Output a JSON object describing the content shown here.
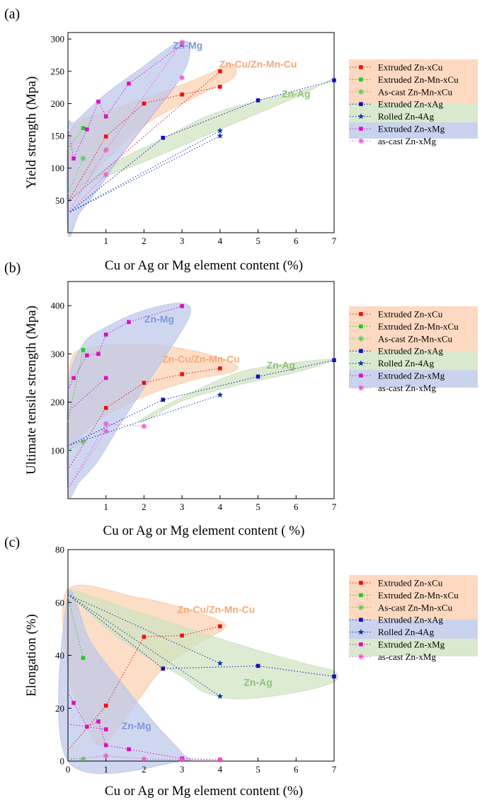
{
  "colors": {
    "Extruded Zn-xCu": "#ee1111",
    "Extruded Zn-Mn-xCu": "#22cc22",
    "As-cast Zn-Mn-xCu": "#55cc55",
    "Extruded Zn-xAg": "#1111bb",
    "Rolled Zn-4Ag": "#1133aa",
    "Extruded Zn-xMg": "#dd11bb",
    "as-cast Zn-xMg": "#ee55cc",
    "region_cu": "#fbd0b0",
    "region_ag": "#cfe3c0",
    "region_mg": "#bcc8ea",
    "region_cu_text": "#f7a878",
    "region_ag_text": "#8fc27a",
    "region_mg_text": "#7f98d8"
  },
  "chart_data": [
    {
      "type": "scatter",
      "panel_label": "(a)",
      "xlabel": "Cu or Ag or Mg element content (%)",
      "ylabel": "Yield strength (Mpa)",
      "xlim": [
        0,
        7
      ],
      "ylim": [
        0,
        310
      ],
      "x_ticks": [
        1,
        2,
        3,
        4,
        5,
        6,
        7
      ],
      "y_ticks": [
        50,
        100,
        150,
        200,
        250,
        300
      ],
      "legend": [
        "Extruded Zn-xCu",
        "Extruded Zn-Mn-xCu",
        "As-cast Zn-Mn-xCu",
        "Extruded Zn-xAg",
        "Rolled Zn-4Ag",
        "Extruded Zn-xMg",
        "as-cast Zn-xMg"
      ],
      "region_labels": [
        {
          "text": "Zn-Mg",
          "group": "mg",
          "x": 3.15,
          "y": 285
        },
        {
          "text": "Zn-Cu/Zn-Mn-Cu",
          "group": "cu",
          "x": 5.0,
          "y": 256
        },
        {
          "text": "Zn-Ag",
          "group": "ag",
          "x": 6.0,
          "y": 210
        }
      ],
      "regions": [
        {
          "group": "ag",
          "points": [
            [
              0.4,
              75
            ],
            [
              2,
              110
            ],
            [
              4,
              160
            ],
            [
              6,
              210
            ],
            [
              7,
              240
            ],
            [
              6.5,
              226
            ],
            [
              4,
              188
            ],
            [
              2.5,
              146
            ],
            [
              1.2,
              108
            ],
            [
              0.6,
              82
            ]
          ]
        },
        {
          "group": "cu",
          "points": [
            [
              0,
              52
            ],
            [
              0.05,
              150
            ],
            [
              0.4,
              175
            ],
            [
              1.2,
              192
            ],
            [
              2.5,
              218
            ],
            [
              3.7,
              246
            ],
            [
              4.3,
              262
            ],
            [
              4.35,
              240
            ],
            [
              3.4,
              212
            ],
            [
              2.1,
              170
            ],
            [
              1.1,
              118
            ],
            [
              0.4,
              72
            ],
            [
              0.05,
              48
            ]
          ]
        },
        {
          "group": "mg",
          "points": [
            [
              0,
              0
            ],
            [
              0,
              160
            ],
            [
              0.2,
              172
            ],
            [
              1,
              215
            ],
            [
              2,
              258
            ],
            [
              2.8,
              292
            ],
            [
              3.2,
              292
            ],
            [
              3.05,
              250
            ],
            [
              2.3,
              188
            ],
            [
              1.5,
              128
            ],
            [
              0.8,
              68
            ],
            [
              0.3,
              30
            ]
          ]
        }
      ],
      "series": [
        {
          "name": "Extruded Zn-xCu",
          "marker": "square",
          "x": [
            0,
            1,
            2,
            3,
            4
          ],
          "y": [
            48,
            149,
            200,
            214,
            226
          ]
        },
        {
          "name": "Extruded Zn-xCu",
          "marker": "square",
          "x": [
            0,
            4
          ],
          "y": [
            48,
            250
          ]
        },
        {
          "name": "Extruded Zn-Mn-xCu",
          "marker": "square",
          "x": [
            0,
            0.4
          ],
          "y": [
            130,
            162
          ]
        },
        {
          "name": "As-cast Zn-Mn-xCu",
          "marker": "asterisk",
          "x": [
            0,
            0.4
          ],
          "y": [
            60,
            115
          ]
        },
        {
          "name": "Extruded Zn-xAg",
          "marker": "square",
          "x": [
            0,
            2.5,
            5,
            7
          ],
          "y": [
            30,
            147,
            205,
            236
          ]
        },
        {
          "name": "Rolled Zn-4Ag",
          "marker": "star",
          "x": [
            0,
            4
          ],
          "y": [
            30,
            150
          ]
        },
        {
          "name": "Rolled Zn-4Ag",
          "marker": "star",
          "x": [
            0,
            4
          ],
          "y": [
            30,
            158
          ]
        },
        {
          "name": "Extruded Zn-xMg",
          "marker": "square",
          "x": [
            0,
            0.15,
            0.5,
            0.8,
            1,
            1.6,
            3
          ],
          "y": [
            160,
            115,
            160,
            203,
            180,
            231,
            291
          ]
        },
        {
          "name": "as-cast Zn-xMg",
          "marker": "asterisk",
          "x": [
            0,
            1,
            3
          ],
          "y": [
            30,
            128,
            295
          ]
        },
        {
          "name": "as-cast Zn-xMg",
          "marker": "asterisk",
          "x": [
            0,
            1,
            3
          ],
          "y": [
            30,
            90,
            240
          ]
        }
      ]
    },
    {
      "type": "scatter",
      "panel_label": "(b)",
      "xlabel": "Cu or Ag or Mg element content ( %)",
      "ylabel": "Ultimate tensile strength (Mpa)",
      "xlim": [
        0,
        7
      ],
      "ylim": [
        0,
        450
      ],
      "x_ticks": [
        1,
        2,
        3,
        4,
        5,
        6,
        7
      ],
      "y_ticks": [
        100,
        200,
        300,
        400
      ],
      "legend": [
        "Extruded Zn-xCu",
        "Extruded Zn-Mn-xCu",
        "As-cast Zn-Mn-xCu",
        "Extruded Zn-xAg",
        "Rolled Zn-4Ag",
        "Extruded Zn-xMg",
        "as-cast Zn-xMg"
      ],
      "region_labels": [
        {
          "text": "Zn-Mg",
          "group": "mg",
          "x": 2.4,
          "y": 365
        },
        {
          "text": "Zn-Cu/Zn-Mn-Cu",
          "group": "cu",
          "x": 3.5,
          "y": 282
        },
        {
          "text": "Zn-Ag",
          "group": "ag",
          "x": 5.6,
          "y": 270
        }
      ],
      "regions": [
        {
          "group": "ag",
          "points": [
            [
              2,
              168
            ],
            [
              3,
              210
            ],
            [
              4.5,
              262
            ],
            [
              6,
              282
            ],
            [
              7,
              288
            ],
            [
              6,
              262
            ],
            [
              4.5,
              236
            ],
            [
              3,
              202
            ],
            [
              2,
              160
            ]
          ]
        },
        {
          "group": "cu",
          "points": [
            [
              0,
              103
            ],
            [
              0.05,
              275
            ],
            [
              0.5,
              312
            ],
            [
              2,
              320
            ],
            [
              3.4,
              305
            ],
            [
              4.4,
              278
            ],
            [
              4.3,
              262
            ],
            [
              3.4,
              248
            ],
            [
              2.2,
              218
            ],
            [
              1,
              172
            ],
            [
              0.3,
              128
            ],
            [
              0.05,
              100
            ]
          ]
        },
        {
          "group": "mg",
          "points": [
            [
              0,
              15
            ],
            [
              0.02,
              235
            ],
            [
              0.4,
              320
            ],
            [
              1,
              355
            ],
            [
              2,
              390
            ],
            [
              3,
              405
            ],
            [
              3.2,
              380
            ],
            [
              2.6,
              300
            ],
            [
              1.5,
              170
            ],
            [
              0.8,
              80
            ],
            [
              0.3,
              35
            ]
          ]
        }
      ],
      "series": [
        {
          "name": "Extruded Zn-xCu",
          "marker": "square",
          "x": [
            0,
            1,
            2,
            3,
            4
          ],
          "y": [
            60,
            188,
            240,
            258,
            270
          ]
        },
        {
          "name": "Extruded Zn-Mn-xCu",
          "marker": "square",
          "x": [
            0,
            0.4
          ],
          "y": [
            160,
            308
          ]
        },
        {
          "name": "As-cast Zn-Mn-xCu",
          "marker": "asterisk",
          "x": [
            0,
            0.4
          ],
          "y": [
            100,
            118
          ]
        },
        {
          "name": "Extruded Zn-xAg",
          "marker": "square",
          "x": [
            0,
            2.5,
            5,
            7
          ],
          "y": [
            110,
            205,
            253,
            287
          ]
        },
        {
          "name": "Rolled Zn-4Ag",
          "marker": "star",
          "x": [
            0,
            4
          ],
          "y": [
            110,
            215
          ]
        },
        {
          "name": "Extruded Zn-xMg",
          "marker": "square",
          "x": [
            0,
            0.15,
            0.5,
            0.8,
            1,
            1.6,
            3
          ],
          "y": [
            225,
            250,
            297,
            300,
            340,
            366,
            399
          ]
        },
        {
          "name": "Extruded Zn-xMg",
          "marker": "square",
          "x": [
            0,
            1
          ],
          "y": [
            180,
            250
          ]
        },
        {
          "name": "as-cast Zn-xMg",
          "marker": "asterisk",
          "x": [
            0,
            1,
            2
          ],
          "y": [
            20,
            155,
            150
          ]
        },
        {
          "name": "as-cast Zn-xMg",
          "marker": "asterisk",
          "x": [
            0,
            1
          ],
          "y": [
            20,
            140
          ]
        }
      ]
    },
    {
      "type": "scatter",
      "panel_label": "(c)",
      "xlabel": "Cu or Ag or Mg element content (%)",
      "ylabel": "Elongation (%)",
      "xlim": [
        0,
        7
      ],
      "ylim": [
        0,
        80
      ],
      "x_ticks": [
        0,
        1,
        2,
        3,
        4,
        5,
        6,
        7
      ],
      "y_ticks": [
        0,
        20,
        40,
        60,
        80
      ],
      "legend": [
        "Extruded Zn-xCu",
        "Extruded Zn-Mn-xCu",
        "As-cast Zn-Mn-xCu",
        "Extruded Zn-xAg",
        "Rolled Zn-4Ag",
        "Extruded Zn-xMg",
        "as-cast Zn-xMg"
      ],
      "region_labels": [
        {
          "text": "Zn-Cu/Zn-Mn-Cu",
          "group": "cu",
          "x": 3.9,
          "y": 56
        },
        {
          "text": "Zn-Mg",
          "group": "mg",
          "x": 1.8,
          "y": 12
        },
        {
          "text": "Zn-Ag",
          "group": "ag",
          "x": 5.0,
          "y": 28.5
        }
      ],
      "regions": [
        {
          "group": "cu",
          "points": [
            [
              0,
              65
            ],
            [
              1.8,
              62
            ],
            [
              3,
              58
            ],
            [
              4,
              53
            ],
            [
              4.1,
              50
            ],
            [
              3.5,
              45
            ],
            [
              2.5,
              35
            ],
            [
              1.8,
              22
            ],
            [
              1.3,
              12
            ],
            [
              0.8,
              6
            ],
            [
              0.3,
              20
            ],
            [
              0,
              35
            ]
          ]
        },
        {
          "group": "ag",
          "points": [
            [
              0,
              65
            ],
            [
              1.5,
              58
            ],
            [
              3,
              51
            ],
            [
              4.5,
              44
            ],
            [
              6.2,
              37
            ],
            [
              7,
              34
            ],
            [
              7,
              30
            ],
            [
              6,
              26
            ],
            [
              4.5,
              23.5
            ],
            [
              3.6,
              26
            ],
            [
              3,
              32
            ],
            [
              2,
              40
            ],
            [
              1.2,
              48
            ],
            [
              0.4,
              58
            ]
          ]
        },
        {
          "group": "mg",
          "points": [
            [
              0,
              63
            ],
            [
              0.6,
              45
            ],
            [
              1.5,
              28
            ],
            [
              2.3,
              14
            ],
            [
              3,
              3
            ],
            [
              3,
              0
            ],
            [
              0,
              0
            ]
          ]
        }
      ],
      "series": [
        {
          "name": "Extruded Zn-xCu",
          "marker": "square",
          "x": [
            0,
            1,
            2,
            3,
            4
          ],
          "y": [
            4,
            21,
            47,
            47.5,
            51
          ]
        },
        {
          "name": "Extruded Zn-Mn-xCu",
          "marker": "square",
          "x": [
            0,
            0.4
          ],
          "y": [
            62,
            39
          ]
        },
        {
          "name": "As-cast Zn-Mn-xCu",
          "marker": "asterisk",
          "x": [
            0,
            0.4
          ],
          "y": [
            1,
            0.8
          ]
        },
        {
          "name": "Extruded Zn-xAg",
          "marker": "square",
          "x": [
            0,
            2.5,
            5,
            7
          ],
          "y": [
            63,
            35,
            36,
            32
          ]
        },
        {
          "name": "Rolled Zn-4Ag",
          "marker": "star",
          "x": [
            0,
            4
          ],
          "y": [
            63,
            37
          ]
        },
        {
          "name": "Rolled Zn-4Ag",
          "marker": "star",
          "x": [
            0,
            4
          ],
          "y": [
            63,
            24.5
          ]
        },
        {
          "name": "Extruded Zn-xMg",
          "marker": "square",
          "x": [
            0,
            0.15,
            0.5,
            0.8,
            1,
            1.6,
            3,
            4
          ],
          "y": [
            26,
            22,
            13,
            15,
            6,
            4.5,
            1,
            0.5
          ]
        },
        {
          "name": "Extruded Zn-xMg",
          "marker": "square",
          "x": [
            0,
            1
          ],
          "y": [
            14,
            12
          ]
        },
        {
          "name": "as-cast Zn-xMg",
          "marker": "asterisk",
          "x": [
            0,
            1,
            2,
            3,
            4
          ],
          "y": [
            0.5,
            2,
            0.8,
            0.5,
            0.5
          ]
        }
      ]
    }
  ]
}
